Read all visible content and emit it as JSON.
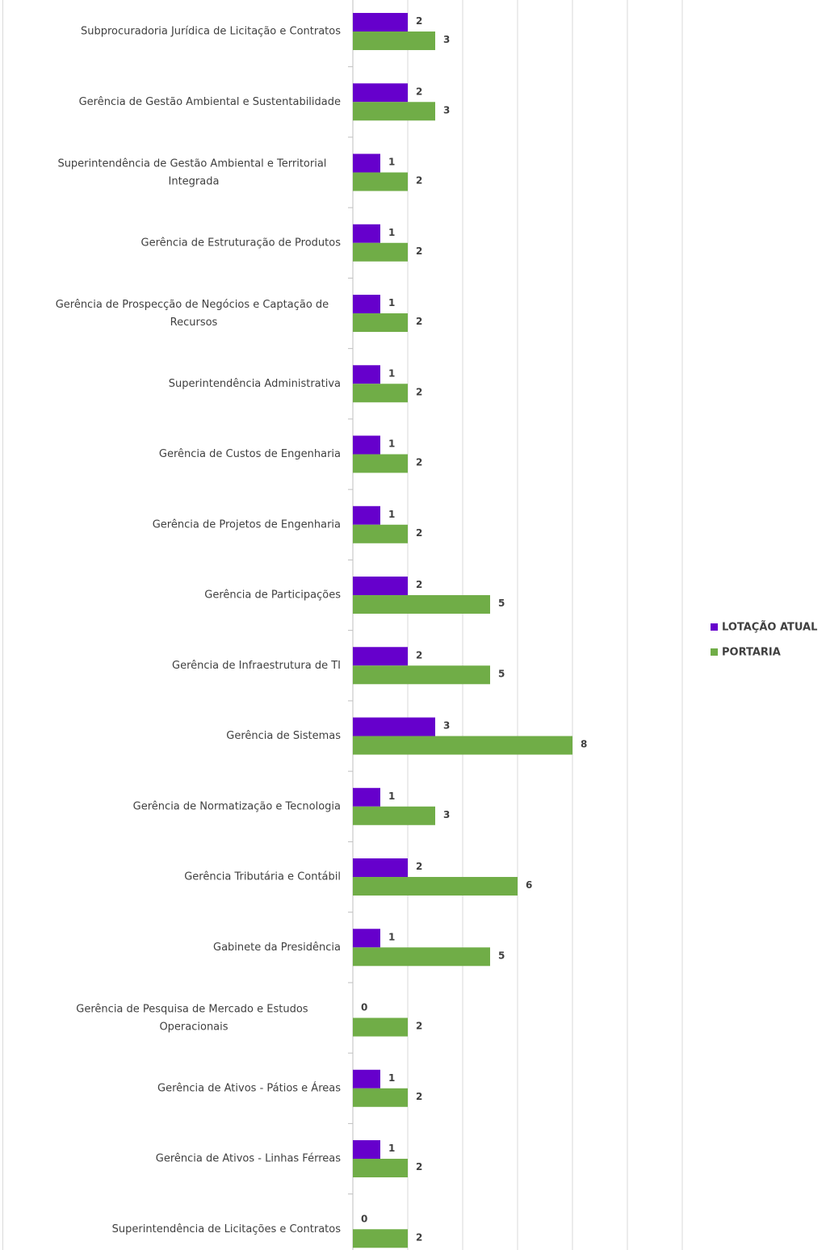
{
  "chart_data": {
    "type": "hbar",
    "categories": [
      "Subprocuradoria Jurídica de Licitação e Contratos",
      "Gerência de Gestão Ambiental e Sustentabilidade",
      "Superintendência de Gestão Ambiental e Territorial Integrada",
      "Gerência de Estruturação de Produtos",
      "Gerência de Prospecção de Negócios e Captação de Recursos",
      "Superintendência Administrativa",
      "Gerência de Custos de Engenharia",
      "Gerência de Projetos de Engenharia",
      "Gerência de Participações",
      "Gerência de Infraestrutura de TI",
      "Gerência de Sistemas",
      "Gerência de Normatização e Tecnologia",
      "Gerência Tributária e Contábil",
      "Gabinete da Presidência",
      "Gerência de Pesquisa de Mercado e Estudos Operacionais",
      "Gerência de Ativos - Pátios e Áreas",
      "Gerência de Ativos - Linhas Férreas",
      "Superintendência de Licitações e Contratos"
    ],
    "series": [
      {
        "name": "LOTAÇÃO ATUAL",
        "color": "#6600cc",
        "values": [
          2,
          2,
          1,
          1,
          1,
          1,
          1,
          1,
          2,
          2,
          3,
          1,
          2,
          1,
          0,
          1,
          1,
          0
        ]
      },
      {
        "name": "PORTARIA",
        "color": "#70ad47",
        "values": [
          3,
          3,
          2,
          2,
          2,
          2,
          2,
          2,
          5,
          5,
          8,
          3,
          6,
          5,
          2,
          2,
          2,
          2
        ]
      }
    ],
    "xlim": [
      0,
      12
    ],
    "xticks": [
      0,
      2,
      4,
      6,
      8,
      10,
      12
    ],
    "grid": true,
    "legend": "right"
  }
}
